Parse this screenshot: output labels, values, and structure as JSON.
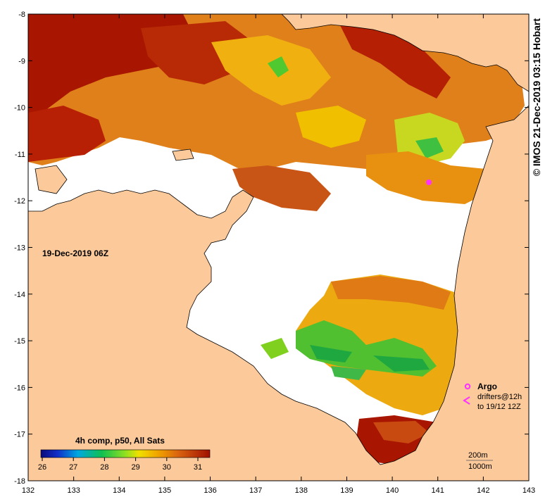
{
  "map": {
    "timestamp_label": "19-Dec-2019 06Z",
    "composite_label": "4h comp, p50, All Sats",
    "credit": "© IMOS 21-Dec-2019 03:15 Hobart",
    "x_ticks": [
      "132",
      "133",
      "134",
      "135",
      "136",
      "137",
      "138",
      "139",
      "140",
      "141",
      "142",
      "143"
    ],
    "y_ticks": [
      "-8",
      "-9",
      "-10",
      "-11",
      "-12",
      "-13",
      "-14",
      "-15",
      "-16",
      "-17",
      "-18"
    ],
    "colorbar_ticks": [
      "26",
      "27",
      "28",
      "29",
      "30",
      "31"
    ],
    "legend": {
      "argo": "Argo",
      "drifters_line1": "drifters@12h",
      "drifters_line2": "to 19/12 12Z",
      "contour_200": "200m",
      "contour_1000": "1000m"
    },
    "colors": {
      "land": "#fcc99a",
      "no_data": "#ffffff",
      "argo": "#ff33ff"
    }
  }
}
